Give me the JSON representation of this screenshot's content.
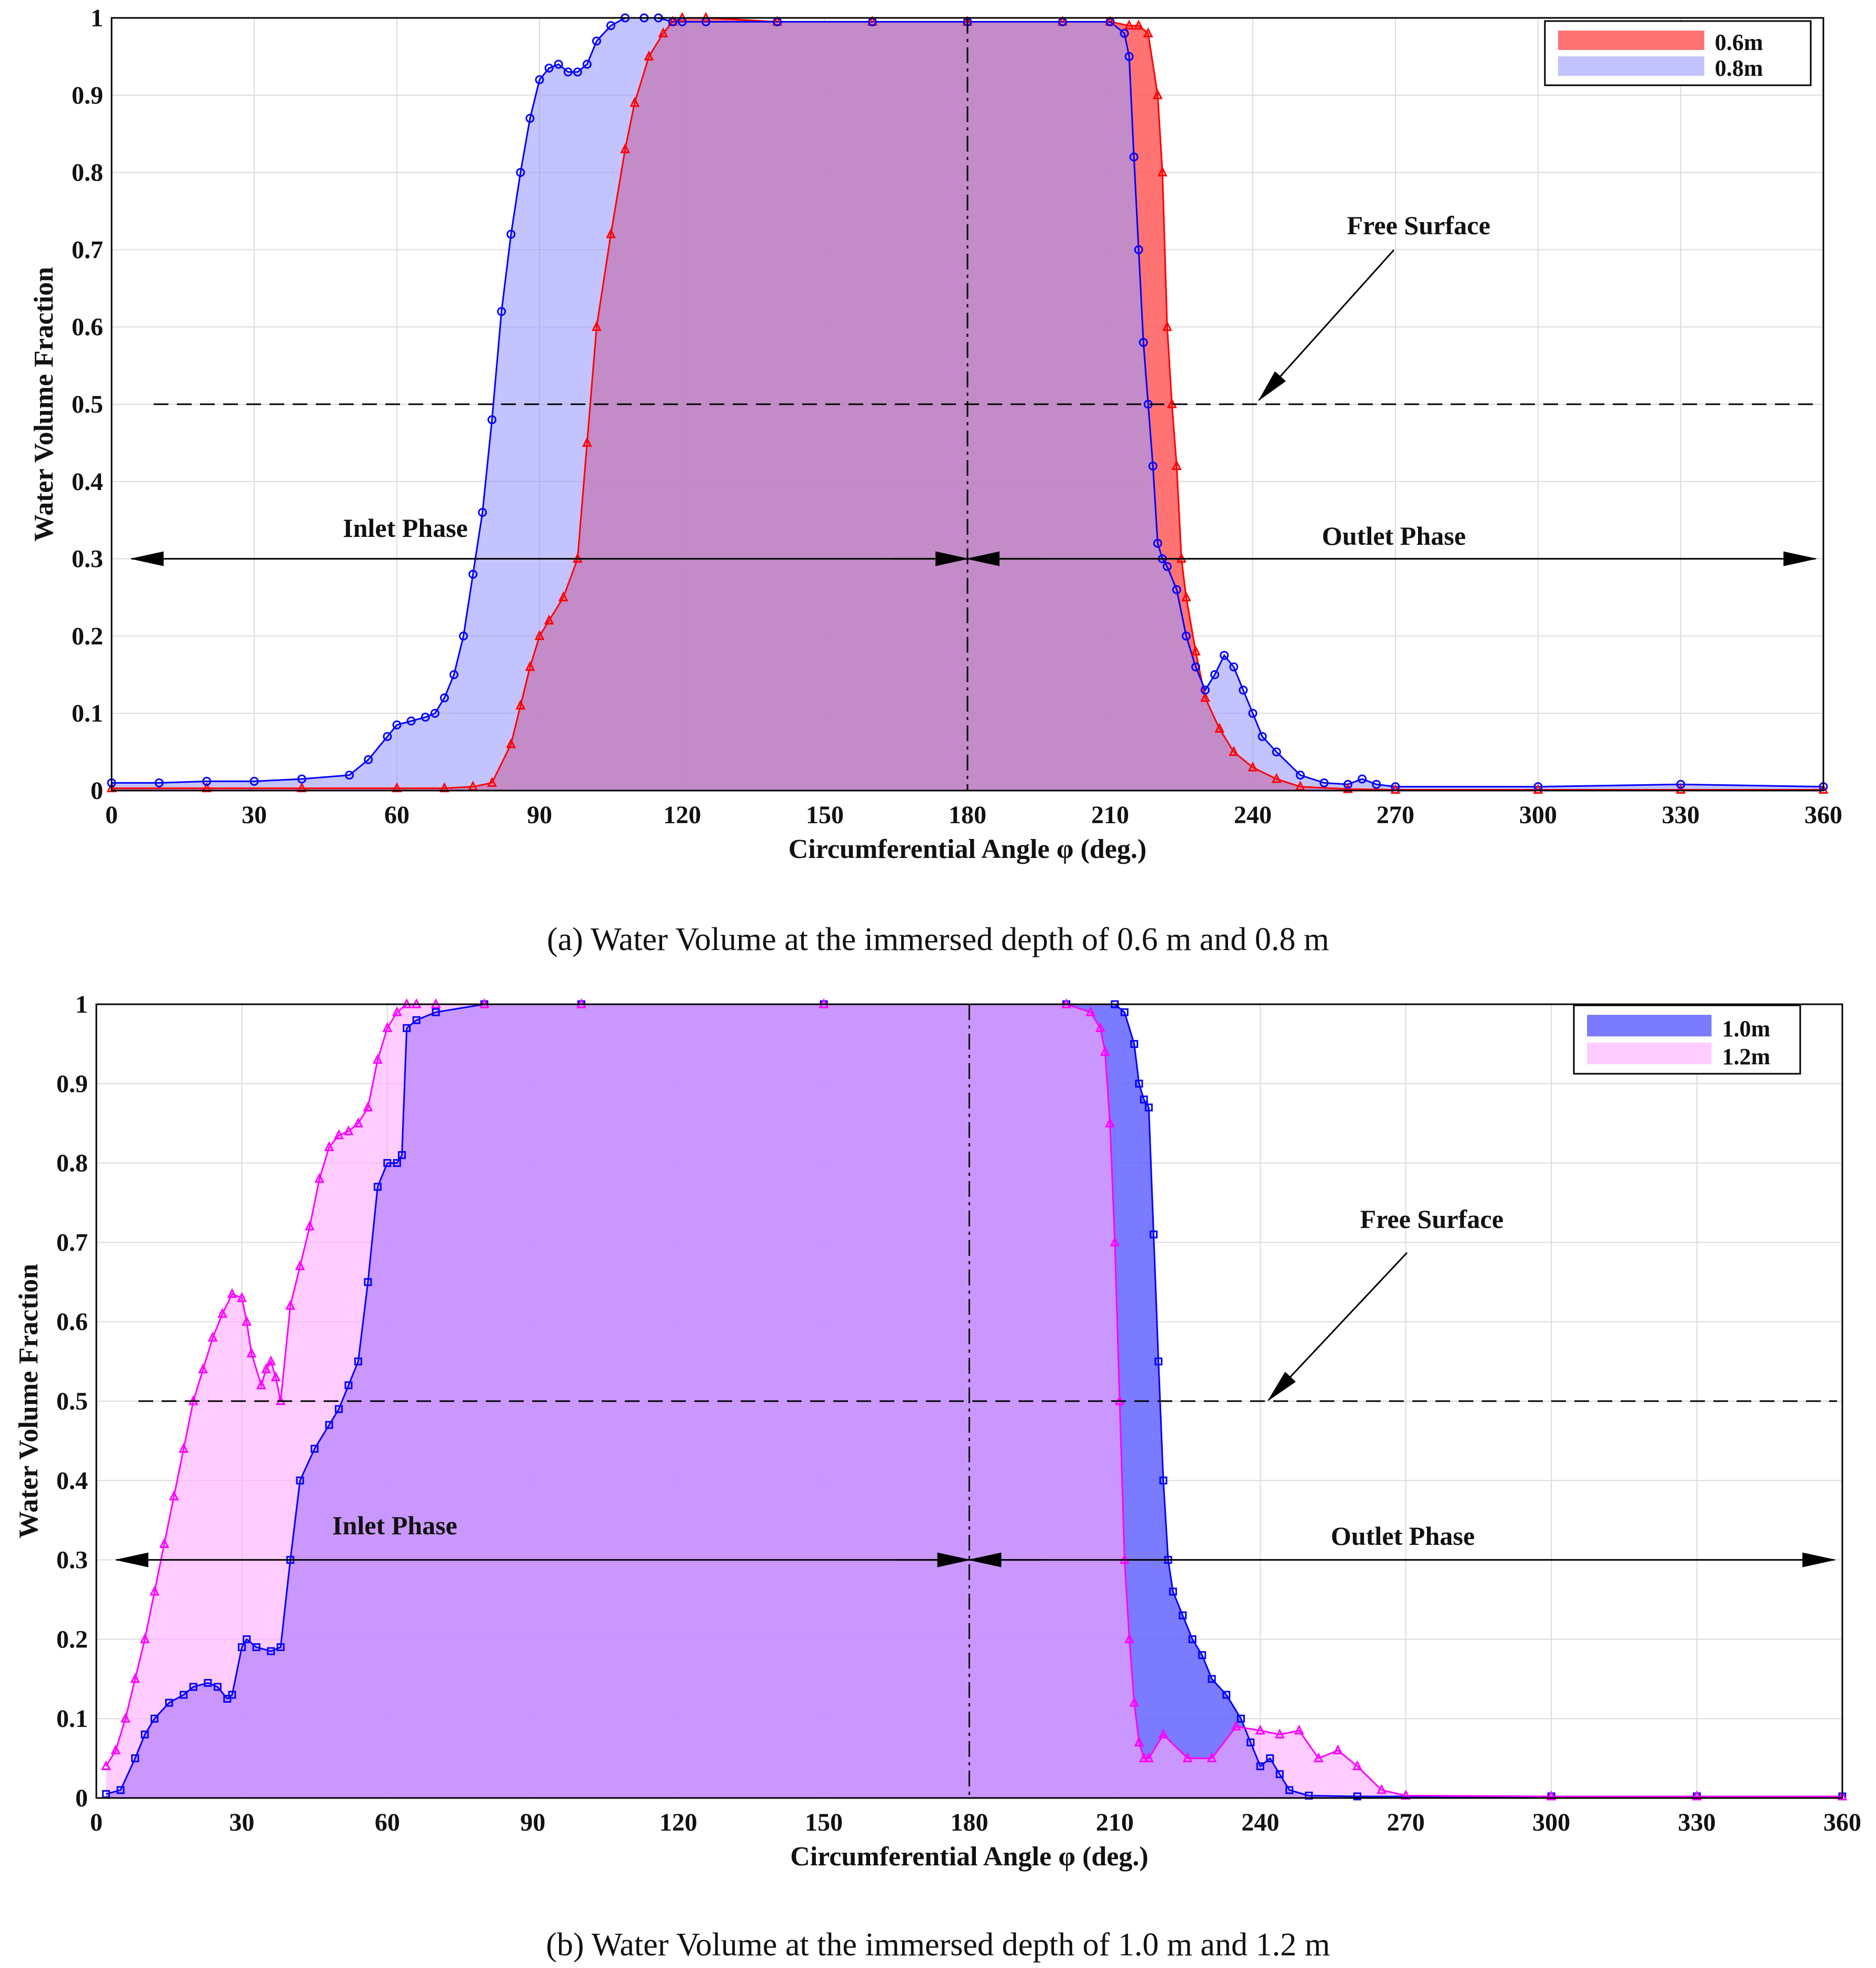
{
  "chart_data": [
    {
      "type": "area",
      "caption": "(a) Water Volume at the immersed depth of 0.6 m and 0.8 m",
      "xlabel": "Circumferential Angle φ (deg.)",
      "ylabel": "Water Volume Fraction",
      "xlim": [
        0,
        360
      ],
      "ylim": [
        0,
        1
      ],
      "xticks": [
        0,
        30,
        60,
        90,
        120,
        150,
        180,
        210,
        240,
        270,
        300,
        330,
        360
      ],
      "yticks": [
        0,
        0.1,
        0.2,
        0.3,
        0.4,
        0.5,
        0.6,
        0.7,
        0.8,
        0.9,
        1
      ],
      "ytick_labels": [
        "0",
        "0.1",
        "0.2",
        "0.3",
        "0.4",
        "0.5",
        "0.6",
        "0.7",
        "0.8",
        "0.9",
        "1"
      ],
      "grid": true,
      "legend_position": "top-right",
      "series": [
        {
          "name": "0.6m",
          "color": "#ff0000",
          "fill": "#ff5a5a",
          "marker": "triangle",
          "x": [
            0,
            20,
            40,
            60,
            70,
            76,
            80,
            84,
            86,
            88,
            90,
            92,
            95,
            98,
            100,
            102,
            105,
            108,
            110,
            113,
            116,
            118,
            120,
            125,
            140,
            160,
            180,
            200,
            210,
            214,
            216,
            218,
            220,
            221,
            222,
            223,
            224,
            225,
            226,
            228,
            230,
            233,
            236,
            240,
            245,
            250,
            260,
            270,
            300,
            330,
            360
          ],
          "y": [
            0.003,
            0.003,
            0.003,
            0.003,
            0.003,
            0.005,
            0.01,
            0.06,
            0.11,
            0.16,
            0.2,
            0.22,
            0.25,
            0.3,
            0.45,
            0.6,
            0.72,
            0.83,
            0.89,
            0.95,
            0.98,
            0.995,
            1,
            1,
            0.995,
            0.995,
            0.995,
            0.995,
            0.995,
            0.99,
            0.99,
            0.98,
            0.9,
            0.8,
            0.6,
            0.5,
            0.42,
            0.3,
            0.25,
            0.18,
            0.12,
            0.08,
            0.05,
            0.03,
            0.015,
            0.005,
            0.002,
            0.001,
            0.001,
            0.001,
            0.001
          ]
        },
        {
          "name": "0.8m",
          "color": "#0000ff",
          "fill": "#9b9bff",
          "marker": "circle",
          "x": [
            0,
            10,
            20,
            30,
            40,
            50,
            54,
            58,
            60,
            63,
            66,
            68,
            70,
            72,
            74,
            76,
            78,
            80,
            82,
            84,
            86,
            88,
            90,
            92,
            94,
            96,
            98,
            100,
            102,
            105,
            108,
            112,
            115,
            118,
            120,
            125,
            140,
            160,
            180,
            200,
            210,
            213,
            214,
            215,
            216,
            217,
            218,
            219,
            220,
            221,
            222,
            224,
            226,
            228,
            230,
            232,
            234,
            236,
            238,
            240,
            242,
            245,
            250,
            255,
            260,
            263,
            266,
            270,
            300,
            330,
            360
          ],
          "y": [
            0.01,
            0.01,
            0.012,
            0.012,
            0.015,
            0.02,
            0.04,
            0.07,
            0.085,
            0.09,
            0.095,
            0.1,
            0.12,
            0.15,
            0.2,
            0.28,
            0.36,
            0.48,
            0.62,
            0.72,
            0.8,
            0.87,
            0.92,
            0.935,
            0.94,
            0.93,
            0.93,
            0.94,
            0.97,
            0.99,
            1,
            1,
            1,
            0.995,
            0.995,
            0.995,
            0.995,
            0.995,
            0.995,
            0.995,
            0.995,
            0.98,
            0.95,
            0.82,
            0.7,
            0.58,
            0.5,
            0.42,
            0.32,
            0.3,
            0.29,
            0.26,
            0.2,
            0.16,
            0.13,
            0.15,
            0.175,
            0.16,
            0.13,
            0.1,
            0.07,
            0.05,
            0.02,
            0.01,
            0.008,
            0.015,
            0.008,
            0.005,
            0.005,
            0.008,
            0.005
          ]
        }
      ],
      "annotations": {
        "free_surface_label": "Free Surface",
        "free_surface_level": 0.5,
        "inlet_label": "Inlet Phase",
        "outlet_label": "Outlet Phase",
        "phase_arrow_level": 0.3,
        "divider_angle": 180
      }
    },
    {
      "type": "area",
      "caption": "(b) Water Volume at the immersed depth of 1.0 m and 1.2 m",
      "xlabel": "Circumferential Angle φ (deg.)",
      "ylabel": "Water Volume Fraction",
      "xlim": [
        0,
        360
      ],
      "ylim": [
        0,
        1
      ],
      "xticks": [
        0,
        30,
        60,
        90,
        120,
        150,
        180,
        210,
        240,
        270,
        300,
        330,
        360
      ],
      "yticks": [
        0,
        0.1,
        0.2,
        0.3,
        0.4,
        0.5,
        0.6,
        0.7,
        0.8,
        0.9,
        1
      ],
      "ytick_labels": [
        "0",
        "0.1",
        "0.2",
        "0.3",
        "0.4",
        "0.5",
        "0.6",
        "0.7",
        "0.8",
        "0.9",
        "1"
      ],
      "grid": true,
      "legend_position": "top-right",
      "series": [
        {
          "name": "1.0m",
          "color": "#0000ff",
          "fill": "#6464ff",
          "marker": "square",
          "x": [
            2,
            5,
            8,
            10,
            12,
            15,
            18,
            20,
            23,
            25,
            27,
            28,
            30,
            31,
            33,
            36,
            38,
            40,
            42,
            45,
            48,
            50,
            52,
            54,
            56,
            58,
            60,
            62,
            63,
            64,
            66,
            70,
            80,
            100,
            150,
            200,
            210,
            212,
            214,
            215,
            216,
            217,
            218,
            219,
            220,
            221,
            222,
            224,
            226,
            228,
            230,
            233,
            236,
            238,
            240,
            242,
            244,
            246,
            250,
            260,
            300,
            330,
            360
          ],
          "y": [
            0.005,
            0.01,
            0.05,
            0.08,
            0.1,
            0.12,
            0.13,
            0.14,
            0.145,
            0.14,
            0.125,
            0.13,
            0.19,
            0.2,
            0.19,
            0.185,
            0.19,
            0.3,
            0.4,
            0.44,
            0.47,
            0.49,
            0.52,
            0.55,
            0.65,
            0.77,
            0.8,
            0.8,
            0.81,
            0.97,
            0.98,
            0.99,
            1,
            1,
            1,
            1,
            1,
            0.99,
            0.95,
            0.9,
            0.88,
            0.87,
            0.71,
            0.55,
            0.4,
            0.3,
            0.26,
            0.23,
            0.2,
            0.18,
            0.15,
            0.13,
            0.1,
            0.07,
            0.04,
            0.05,
            0.03,
            0.01,
            0.003,
            0.002,
            0.002,
            0.002,
            0.002
          ]
        },
        {
          "name": "1.2m",
          "color": "#ff00ff",
          "fill": "#ffaaff",
          "marker": "triangle",
          "x": [
            2,
            4,
            6,
            8,
            10,
            12,
            14,
            16,
            18,
            20,
            22,
            24,
            26,
            28,
            30,
            31,
            32,
            34,
            35,
            36,
            37,
            38,
            40,
            42,
            44,
            46,
            48,
            50,
            52,
            54,
            56,
            58,
            60,
            62,
            64,
            66,
            70,
            80,
            100,
            150,
            200,
            205,
            207,
            208,
            209,
            210,
            211,
            212,
            213,
            214,
            215,
            216,
            217,
            220,
            225,
            230,
            235,
            240,
            244,
            248,
            252,
            256,
            260,
            265,
            270,
            300,
            330,
            360
          ],
          "y": [
            0.04,
            0.06,
            0.1,
            0.15,
            0.2,
            0.26,
            0.32,
            0.38,
            0.44,
            0.5,
            0.54,
            0.58,
            0.61,
            0.635,
            0.63,
            0.6,
            0.56,
            0.52,
            0.54,
            0.55,
            0.53,
            0.5,
            0.62,
            0.67,
            0.72,
            0.78,
            0.82,
            0.835,
            0.84,
            0.85,
            0.87,
            0.93,
            0.97,
            0.99,
            1,
            1,
            1,
            1,
            1,
            1,
            1,
            0.99,
            0.97,
            0.94,
            0.85,
            0.7,
            0.5,
            0.3,
            0.2,
            0.12,
            0.07,
            0.05,
            0.05,
            0.08,
            0.05,
            0.05,
            0.09,
            0.085,
            0.08,
            0.085,
            0.05,
            0.06,
            0.04,
            0.01,
            0.003,
            0.002,
            0.002,
            0.002
          ]
        }
      ],
      "annotations": {
        "free_surface_label": "Free Surface",
        "free_surface_level": 0.5,
        "inlet_label": "Inlet Phase",
        "outlet_label": "Outlet Phase",
        "phase_arrow_level": 0.3,
        "divider_angle": 180
      }
    }
  ]
}
